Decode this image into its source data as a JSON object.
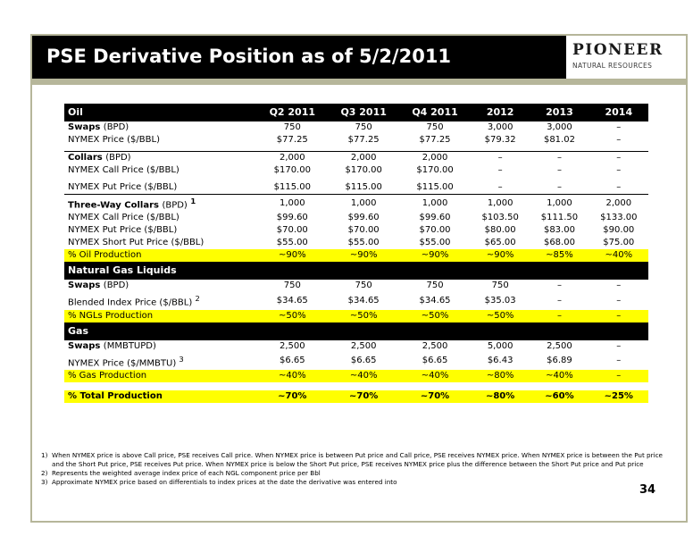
{
  "slide": {
    "title": "PSE Derivative Position as of 5/2/2011",
    "logo_main": "PIONEER",
    "logo_sub": "NATURAL RESOURCES",
    "page_number": "34"
  },
  "table": {
    "header": [
      "Oil",
      "Q2 2011",
      "Q3 2011",
      "Q4 2011",
      "2012",
      "2013",
      "2014"
    ],
    "oil": {
      "swaps": {
        "label": "Swaps",
        "unit": "(BPD)",
        "values": [
          "750",
          "750",
          "750",
          "3,000",
          "3,000",
          "–"
        ]
      },
      "swaps_price": {
        "label": "NYMEX Price ($/BBL)",
        "values": [
          "$77.25",
          "$77.25",
          "$77.25",
          "$79.32",
          "$81.02",
          "–"
        ]
      },
      "collars": {
        "label": "Collars",
        "unit": "(BPD)",
        "values": [
          "2,000",
          "2,000",
          "2,000",
          "–",
          "–",
          "–"
        ]
      },
      "collars_call": {
        "label": "NYMEX Call Price ($/BBL)",
        "values": [
          "$170.00",
          "$170.00",
          "$170.00",
          "–",
          "–",
          "–"
        ]
      },
      "collars_put": {
        "label": "NYMEX Put Price ($/BBL)",
        "values": [
          "$115.00",
          "$115.00",
          "$115.00",
          "–",
          "–",
          "–"
        ]
      },
      "threeway": {
        "label": "Three-Way Collars",
        "unit": "(BPD)",
        "sup": "1",
        "values": [
          "1,000",
          "1,000",
          "1,000",
          "1,000",
          "1,000",
          "2,000"
        ]
      },
      "threeway_call": {
        "label": "NYMEX Call Price ($/BBL)",
        "values": [
          "$99.60",
          "$99.60",
          "$99.60",
          "$103.50",
          "$111.50",
          "$133.00"
        ]
      },
      "threeway_put": {
        "label": "NYMEX Put Price ($/BBL)",
        "values": [
          "$70.00",
          "$70.00",
          "$70.00",
          "$80.00",
          "$83.00",
          "$90.00"
        ]
      },
      "threeway_short": {
        "label": "NYMEX Short Put Price ($/BBL)",
        "values": [
          "$55.00",
          "$55.00",
          "$55.00",
          "$65.00",
          "$68.00",
          "$75.00"
        ]
      },
      "pct": {
        "label": "% Oil Production",
        "values": [
          "~90%",
          "~90%",
          "~90%",
          "~90%",
          "~85%",
          "~40%"
        ]
      }
    },
    "ngl": {
      "section": "Natural Gas Liquids",
      "swaps": {
        "label": "Swaps",
        "unit": "(BPD)",
        "values": [
          "750",
          "750",
          "750",
          "750",
          "–",
          "–"
        ]
      },
      "blended": {
        "label": "Blended Index Price ($/BBL)",
        "sup": "2",
        "values": [
          "$34.65",
          "$34.65",
          "$34.65",
          "$35.03",
          "–",
          "–"
        ]
      },
      "pct": {
        "label": "% NGLs Production",
        "values": [
          "~50%",
          "~50%",
          "~50%",
          "~50%",
          "–",
          "–"
        ]
      }
    },
    "gas": {
      "section": "Gas",
      "swaps": {
        "label": "Swaps",
        "unit": "(MMBTUPD)",
        "values": [
          "2,500",
          "2,500",
          "2,500",
          "5,000",
          "2,500",
          "–"
        ]
      },
      "price": {
        "label": "NYMEX Price ($/MMBTU)",
        "sup": "3",
        "values": [
          "$6.65",
          "$6.65",
          "$6.65",
          "$6.43",
          "$6.89",
          "–"
        ]
      },
      "pct": {
        "label": "% Gas Production",
        "values": [
          "~40%",
          "~40%",
          "~40%",
          "~80%",
          "~40%",
          "–"
        ]
      }
    },
    "total": {
      "label": "% Total Production",
      "values": [
        "~70%",
        "~70%",
        "~70%",
        "~80%",
        "~60%",
        "~25%"
      ]
    }
  },
  "footnotes": [
    {
      "num": "1)",
      "text": "When NYMEX price is above Call price, PSE receives Call price.  When NYMEX price is between Put price and Call price, PSE receives NYMEX price.  When NYMEX price is between the Put price and the Short Put price, PSE receives Put price.  When NYMEX price is below the Short Put price, PSE receives NYMEX price plus the difference between the Short Put price and Put price"
    },
    {
      "num": "2)",
      "text": "Represents the weighted average index price of each NGL component price per Bbl"
    },
    {
      "num": "3)",
      "text": "Approximate NYMEX price based on differentials to index prices at the date the derivative was entered into"
    }
  ],
  "colors": {
    "frame": "#b6b69a",
    "title_bar": "#000000",
    "highlight": "#ffff00"
  }
}
